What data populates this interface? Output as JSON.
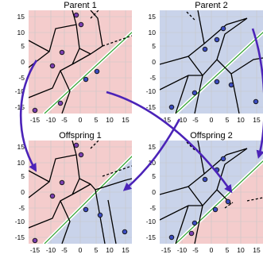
{
  "colors": {
    "red_region": "#f4cccc",
    "blue_region": "#c9d3ea",
    "arrow": "#4b23b8",
    "point_blue": "#3b4cc0",
    "point_purple": "#7b3fb0",
    "reference_line": "#2ca02c"
  },
  "panels": [
    {
      "id": "parent-1",
      "title": "Parent 1"
    },
    {
      "id": "parent-2",
      "title": "Parent 2"
    },
    {
      "id": "offspring-1",
      "title": "Offspring 1"
    },
    {
      "id": "offspring-2",
      "title": "Offspring 2"
    }
  ],
  "axis": {
    "xlim": [
      -16,
      16
    ],
    "ylim": [
      -16,
      16
    ],
    "ticks": [
      "-15",
      "-10",
      "-5",
      "0",
      "5",
      "10",
      "15"
    ],
    "tick_values": [
      -15,
      -10,
      -5,
      0,
      5,
      10,
      15
    ]
  },
  "points": [
    {
      "x": -2,
      "y": 14
    },
    {
      "x": 0,
      "y": 11
    },
    {
      "x": -6,
      "y": 3
    },
    {
      "x": -9,
      "y": -1
    },
    {
      "x": 6,
      "y": -3
    },
    {
      "x": 3,
      "y": -6
    },
    {
      "x": 12,
      "y": -13
    },
    {
      "x": -11,
      "y": -15
    },
    {
      "x": -5,
      "y": -12
    },
    {
      "x": 0,
      "y": 6
    },
    {
      "x": 4,
      "y": 10
    },
    {
      "x": -2,
      "y": 4
    }
  ]
}
